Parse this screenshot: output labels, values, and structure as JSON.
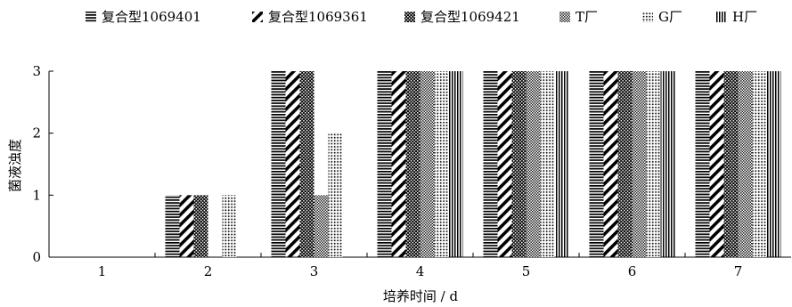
{
  "chart_data": {
    "type": "bar",
    "xlabel": "培养时间 / d",
    "ylabel": "菌液浊度",
    "categories": [
      "1",
      "2",
      "3",
      "4",
      "5",
      "6",
      "7"
    ],
    "ylim": [
      0,
      3
    ],
    "yticks": [
      0,
      1,
      2,
      3
    ],
    "grid": false,
    "legend_position": "top",
    "series": [
      {
        "name": "复合型1069401",
        "pattern": "horizontal-lines",
        "values": [
          0,
          1,
          3,
          3,
          3,
          3,
          3
        ]
      },
      {
        "name": "复合型1069361",
        "pattern": "diagonal-lines",
        "values": [
          0,
          1,
          3,
          3,
          3,
          3,
          3
        ]
      },
      {
        "name": "复合型1069421",
        "pattern": "checker",
        "values": [
          0,
          1,
          3,
          3,
          3,
          3,
          3
        ]
      },
      {
        "name": "T厂",
        "pattern": "dense-dots",
        "values": [
          0,
          0,
          1,
          3,
          3,
          3,
          3
        ]
      },
      {
        "name": "G厂",
        "pattern": "sparse-dots",
        "values": [
          0,
          1,
          2,
          3,
          3,
          3,
          3
        ]
      },
      {
        "name": "H厂",
        "pattern": "vertical-lines",
        "values": [
          0,
          0,
          0,
          3,
          3,
          3,
          3
        ]
      }
    ]
  }
}
